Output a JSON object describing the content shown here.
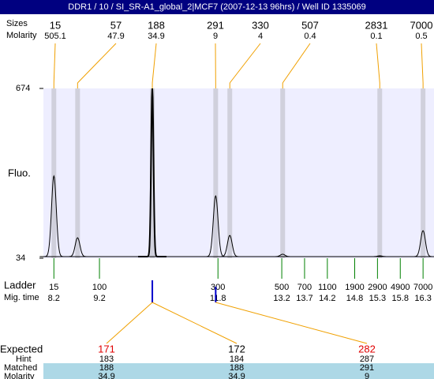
{
  "chart_data": {
    "type": "electropherogram",
    "title": "DDR1 / 10 / SI_SR-A1_global_2|MCF7 (2007-12-13 96hrs) / Well ID 1335069",
    "size_label": "Sizes",
    "molarity_label": "Molarity",
    "ylabel": "Fluo.",
    "ylim": [
      34,
      674
    ],
    "yticks": [
      34,
      674
    ],
    "xlim": [
      7.97,
      16.54
    ],
    "peaks": {
      "sizes": [
        15,
        57,
        188,
        291,
        330,
        507,
        2831,
        7000
      ],
      "molarity": [
        505.1,
        47.9,
        34.9,
        9,
        4,
        0.4,
        0.1,
        0.5
      ],
      "times": [
        8.2,
        8.72,
        10.36,
        11.75,
        12.06,
        13.22,
        15.35,
        16.3
      ],
      "heights": [
        344,
        111,
        674,
        269,
        120,
        49,
        43,
        138
      ]
    },
    "ladder": {
      "label": "Ladder",
      "time_label": "Mig. time",
      "sizes": [
        15,
        100,
        300,
        500,
        700,
        1100,
        1900,
        2900,
        4900,
        7000
      ],
      "times": [
        8.2,
        9.2,
        11.8,
        13.2,
        13.7,
        14.2,
        14.8,
        15.3,
        15.8,
        16.3
      ]
    },
    "table": {
      "labels": [
        "Expected",
        "Hint",
        "Matched",
        "Molarity"
      ],
      "expected": [
        171,
        172,
        282
      ],
      "hint": [
        183,
        184,
        287
      ],
      "matched": [
        188,
        188,
        291
      ],
      "molarity": [
        34.9,
        34.9,
        9
      ]
    }
  }
}
